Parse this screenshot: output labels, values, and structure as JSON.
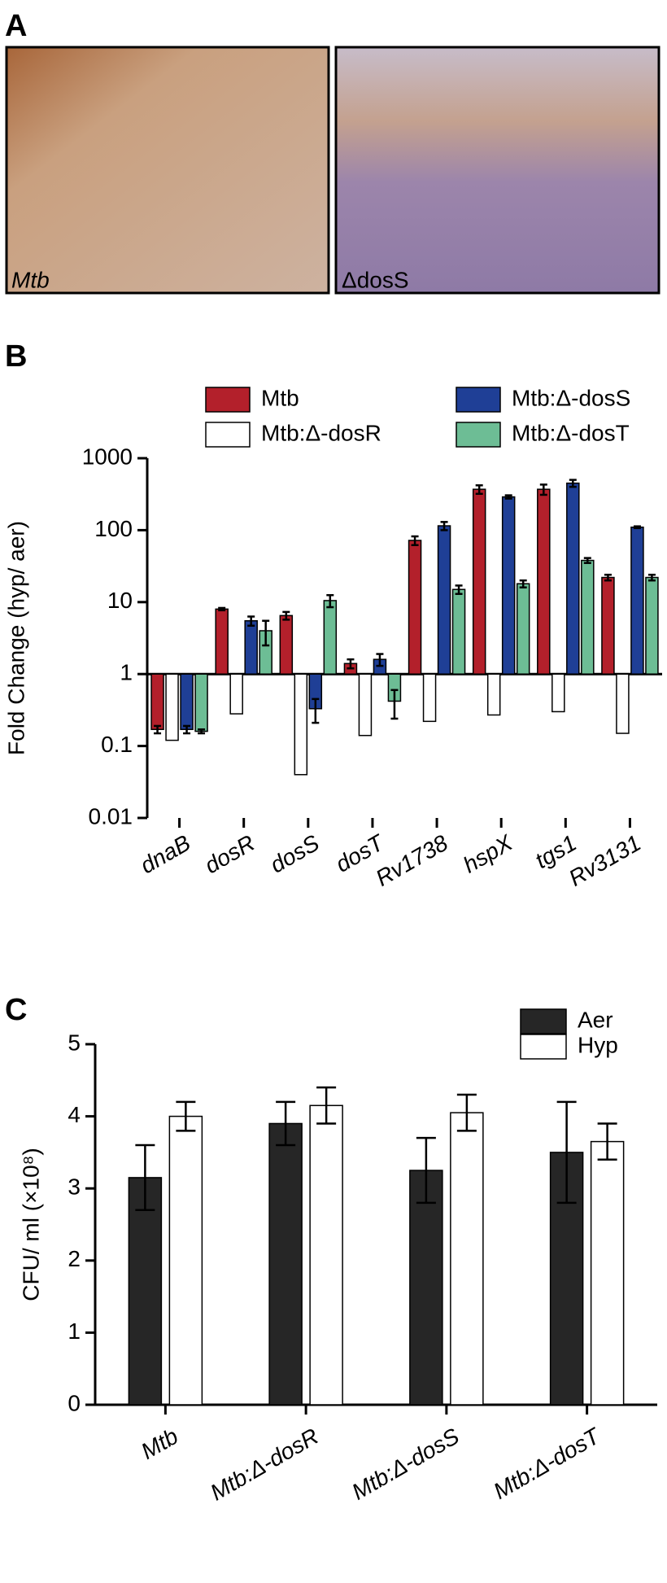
{
  "panel_labels": [
    "A",
    "B",
    "C"
  ],
  "images": [
    {
      "label": "Mtb"
    },
    {
      "label": "ΔdosS"
    }
  ],
  "chart_data": [
    {
      "type": "bar",
      "ylabel": "Fold Change (hyp/ aer)",
      "log_scale": true,
      "baseline": 1,
      "categories": [
        "dnaB",
        "dosR",
        "dosS",
        "dosT",
        "Rv1738",
        "hspX",
        "tgs1",
        "Rv3131"
      ],
      "series": [
        {
          "name": "Mtb",
          "color": "#b3202b",
          "values": [
            0.17,
            8,
            6.5,
            1.4,
            72,
            370,
            370,
            22
          ],
          "errors": [
            0.02,
            0.3,
            0.8,
            0.2,
            10,
            50,
            60,
            2
          ]
        },
        {
          "name": "Mtb:Δ-dosR",
          "color": "#ffffff",
          "values": [
            0.12,
            0.28,
            0.04,
            0.14,
            0.22,
            0.27,
            0.3,
            0.15
          ]
        },
        {
          "name": "Mtb:Δ-dosS",
          "color": "#1f3f96",
          "values": [
            0.17,
            5.5,
            0.33,
            1.6,
            115,
            290,
            450,
            110
          ],
          "errors": [
            0.02,
            0.8,
            0.12,
            0.3,
            15,
            15,
            50,
            3
          ]
        },
        {
          "name": "Mtb:Δ-dosT",
          "color": "#6dbd95",
          "values": [
            0.16,
            4,
            10.5,
            0.42,
            15,
            18,
            38,
            22
          ],
          "errors": [
            0.01,
            1.5,
            2,
            0.18,
            2,
            2,
            3,
            2
          ]
        }
      ],
      "ylim": [
        0.01,
        1000
      ],
      "yticks": [
        0.01,
        0.1,
        1,
        10,
        100,
        1000
      ]
    },
    {
      "type": "bar",
      "ylabel": "CFU/ ml (×10⁸)",
      "baseline": 0,
      "categories": [
        "Mtb",
        "Mtb:Δ-dosR",
        "Mtb:Δ-dosS",
        "Mtb:Δ-dosT"
      ],
      "series": [
        {
          "name": "Aer",
          "color": "#262626",
          "values": [
            3.15,
            3.9,
            3.25,
            3.5
          ],
          "errors": [
            0.45,
            0.3,
            0.45,
            0.7
          ]
        },
        {
          "name": "Hyp",
          "color": "#ffffff",
          "values": [
            4.0,
            4.15,
            4.05,
            3.65
          ],
          "errors": [
            0.2,
            0.25,
            0.25,
            0.25
          ]
        }
      ],
      "ylim": [
        0,
        5
      ],
      "yticks": [
        0,
        1,
        2,
        3,
        4,
        5
      ]
    }
  ]
}
